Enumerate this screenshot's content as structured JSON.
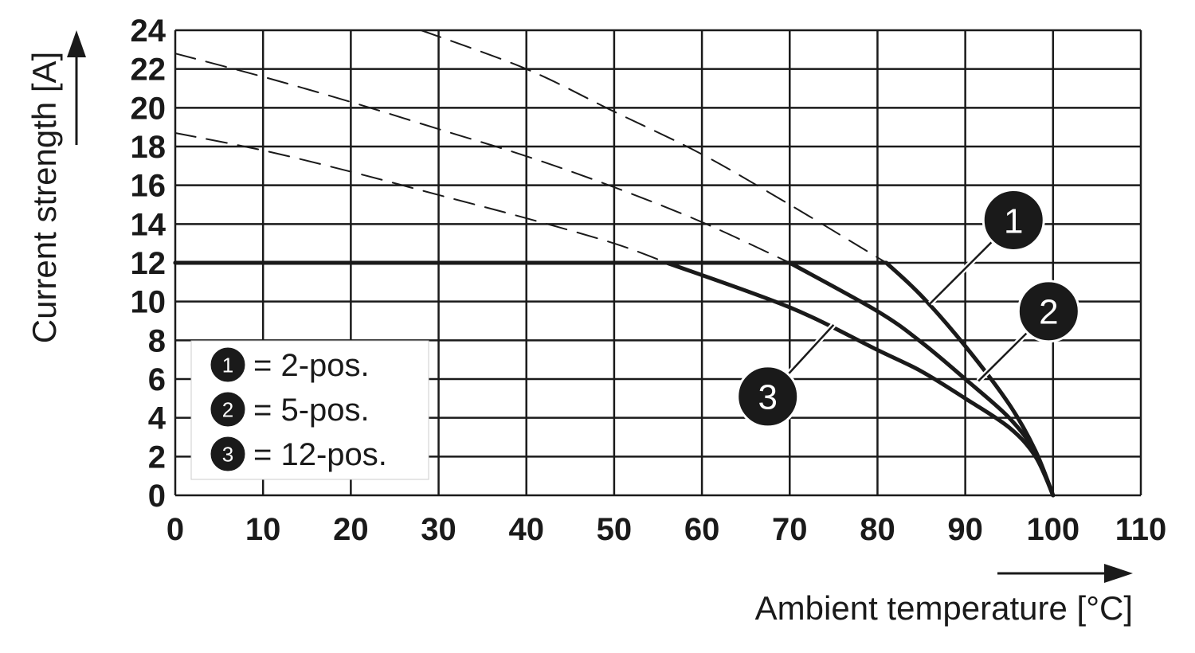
{
  "chart_data": {
    "type": "line",
    "title": "",
    "xlabel": "Ambient temperature [°C]",
    "ylabel": "Current strength [A]",
    "xlim": [
      0,
      110
    ],
    "ylim": [
      0,
      24
    ],
    "x_ticks": [
      0,
      10,
      20,
      30,
      40,
      50,
      60,
      70,
      80,
      90,
      100,
      110
    ],
    "y_ticks": [
      0,
      2,
      4,
      6,
      8,
      10,
      12,
      14,
      16,
      18,
      20,
      22,
      24
    ],
    "grid": true,
    "legend_position": "bottom-left",
    "legend": [
      {
        "marker": "1",
        "label": "= 2-pos."
      },
      {
        "marker": "2",
        "label": "= 5-pos."
      },
      {
        "marker": "3",
        "label": "= 12-pos."
      }
    ],
    "series": [
      {
        "marker": "1",
        "style": "solid",
        "x": [
          0,
          81,
          85,
          90,
          95,
          98,
          100
        ],
        "y": [
          12,
          12,
          10.3,
          7.7,
          4.7,
          2.3,
          0
        ]
      },
      {
        "marker": "2",
        "style": "solid",
        "x": [
          0,
          70,
          80,
          85,
          90,
          95,
          98,
          100
        ],
        "y": [
          12,
          12,
          9.5,
          7.9,
          6.0,
          4.0,
          2.2,
          0
        ]
      },
      {
        "marker": "3",
        "style": "solid",
        "x": [
          0,
          56,
          70,
          80,
          85,
          90,
          95,
          98,
          100
        ],
        "y": [
          12,
          12,
          9.7,
          7.5,
          6.4,
          5.0,
          3.5,
          2.0,
          0
        ]
      },
      {
        "marker": "1",
        "style": "dashed",
        "x": [
          28,
          40,
          50,
          60,
          70,
          81
        ],
        "y": [
          24,
          22,
          19.8,
          17.6,
          15.0,
          12
        ]
      },
      {
        "marker": "2",
        "style": "dashed",
        "x": [
          0,
          10,
          20,
          30,
          40,
          50,
          60,
          70
        ],
        "y": [
          22.8,
          21.6,
          20.3,
          18.9,
          17.5,
          15.9,
          14.1,
          12
        ]
      },
      {
        "marker": "3",
        "style": "dashed",
        "x": [
          0,
          10,
          20,
          30,
          40,
          50,
          56
        ],
        "y": [
          18.7,
          17.8,
          16.7,
          15.5,
          14.3,
          13.0,
          12
        ]
      }
    ],
    "curve_labels": [
      {
        "marker": "1",
        "x": 95.5,
        "y": 14.2,
        "leader_x": 86,
        "leader_y": 9.9
      },
      {
        "marker": "2",
        "x": 99.5,
        "y": 9.5,
        "leader_x": 91.5,
        "leader_y": 5.9
      },
      {
        "marker": "3",
        "x": 67.5,
        "y": 5.1,
        "leader_x": 75,
        "leader_y": 8.8
      }
    ]
  }
}
